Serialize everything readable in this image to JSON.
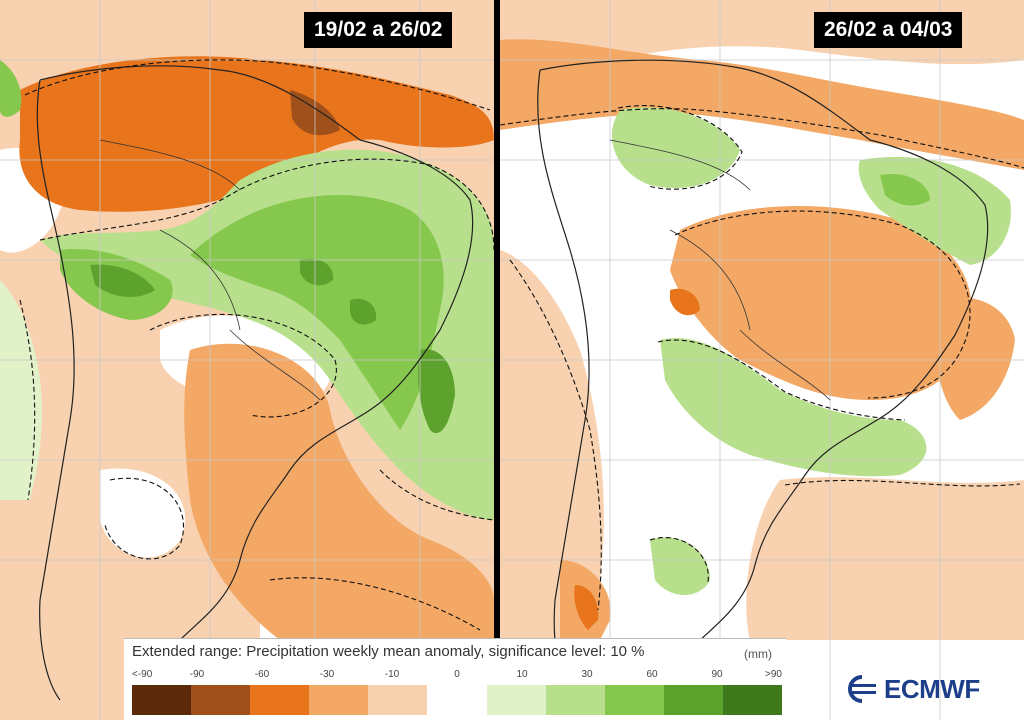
{
  "panels": [
    {
      "date_range": "19/02 a 26/02"
    },
    {
      "date_range": "26/02 a 04/03"
    }
  ],
  "legend": {
    "title": "Extended range: Precipitation weekly mean anomaly, significance level: 10 %",
    "unit": "(mm)",
    "ticks": [
      "<-90",
      "-90",
      "-60",
      "-30",
      "-10",
      "0",
      "10",
      "30",
      "60",
      "90",
      ">90"
    ],
    "colors": [
      "#5a2a0a",
      "#a0501a",
      "#e8741c",
      "#f3a865",
      "#f8d2b0",
      "#ffffff",
      "#e2f2c8",
      "#b8e08c",
      "#86c84e",
      "#5ea22e",
      "#3e7a1c"
    ]
  },
  "brand": {
    "name": "ECMWF"
  },
  "colors": {
    "dry_strong": "#e8741c",
    "dry_moderate": "#f3a865",
    "dry_light": "#f8d2b0",
    "wet_light": "#b8e08c",
    "wet_moderate": "#86c84e",
    "wet_strong": "#5ea22e",
    "brand": "#1d3e8a"
  }
}
